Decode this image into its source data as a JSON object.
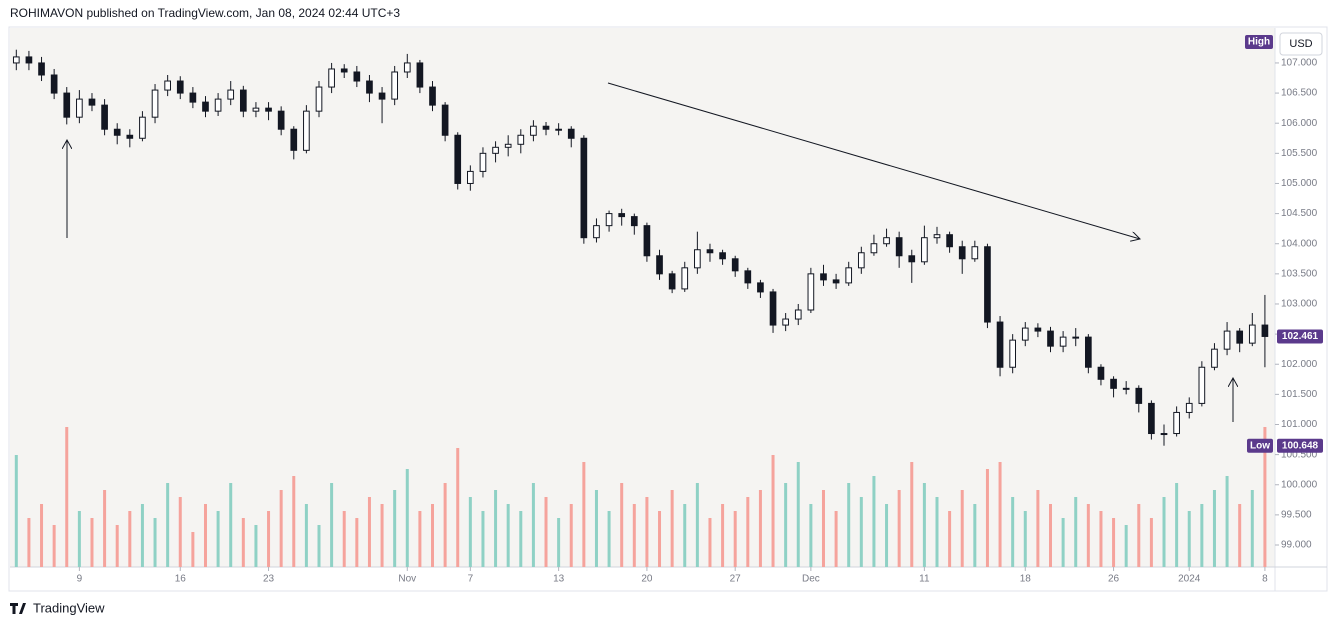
{
  "header": "ROHIMAVON published on TradingView.com, Jan 08, 2024 02:44 UTC+3",
  "footer": "TradingView",
  "currency_button": "USD",
  "high_badge": "High",
  "low_badge": "Low",
  "chart_data": {
    "type": "candlestick",
    "ylim": [
      98.635,
      107.58
    ],
    "yticks": [
      {
        "value": 99,
        "label": "99.000"
      },
      {
        "value": 99.5,
        "label": "99.500"
      },
      {
        "value": 100,
        "label": "100.000"
      },
      {
        "value": 100.5,
        "label": "100.500"
      },
      {
        "value": 101,
        "label": "101.000"
      },
      {
        "value": 101.5,
        "label": "101.500"
      },
      {
        "value": 102,
        "label": "102.000"
      },
      {
        "value": 102.5,
        "label": "102.500"
      },
      {
        "value": 103,
        "label": "103.000"
      },
      {
        "value": 103.5,
        "label": "103.500"
      },
      {
        "value": 104,
        "label": "104.000"
      },
      {
        "value": 104.5,
        "label": "104.500"
      },
      {
        "value": 105,
        "label": "105.000"
      },
      {
        "value": 105.5,
        "label": "105.500"
      },
      {
        "value": 106,
        "label": "106.000"
      },
      {
        "value": 106.5,
        "label": "106.500"
      },
      {
        "value": 107,
        "label": "107.000"
      }
    ],
    "xlim": [
      -0.5,
      99.8
    ],
    "xticks": [
      {
        "value": 5,
        "label": "9"
      },
      {
        "value": 13,
        "label": "16"
      },
      {
        "value": 20,
        "label": "23"
      },
      {
        "value": 31,
        "label": "Nov"
      },
      {
        "value": 36,
        "label": "7"
      },
      {
        "value": 43,
        "label": "13"
      },
      {
        "value": 50,
        "label": "20"
      },
      {
        "value": 57,
        "label": "27"
      },
      {
        "value": 63,
        "label": "Dec"
      },
      {
        "value": 72,
        "label": "11"
      },
      {
        "value": 80,
        "label": "18"
      },
      {
        "value": 87,
        "label": "26"
      },
      {
        "value": 93,
        "label": "2024"
      },
      {
        "value": 99,
        "label": "8"
      }
    ],
    "grid": false,
    "candle_color": "#131722",
    "up_volume_color": "#8fd1c5",
    "down_volume_color": "#f5a39c",
    "open": [
      107.0,
      107.1,
      107.0,
      106.8,
      106.5,
      106.1,
      106.4,
      106.3,
      105.9,
      105.8,
      105.75,
      106.1,
      106.55,
      106.7,
      106.5,
      106.35,
      106.2,
      106.4,
      106.55,
      106.2,
      106.25,
      106.2,
      105.9,
      105.55,
      106.2,
      106.6,
      106.9,
      106.85,
      106.7,
      106.5,
      106.4,
      106.85,
      107.0,
      106.6,
      106.3,
      105.8,
      105.0,
      105.2,
      105.5,
      105.6,
      105.65,
      105.8,
      105.95,
      105.9,
      105.9,
      105.75,
      104.1,
      104.3,
      104.5,
      104.45,
      104.3,
      103.8,
      103.5,
      103.25,
      103.6,
      103.9,
      103.85,
      103.75,
      103.55,
      103.35,
      103.2,
      102.65,
      102.75,
      102.9,
      103.5,
      103.4,
      103.35,
      103.6,
      103.85,
      104.0,
      104.1,
      103.8,
      103.7,
      104.1,
      104.15,
      103.95,
      103.75,
      103.95,
      102.7,
      101.95,
      102.4,
      102.6,
      102.55,
      102.3,
      102.45,
      102.45,
      101.95,
      101.75,
      101.6,
      101.6,
      101.35,
      100.85,
      100.85,
      101.2,
      101.35,
      101.95,
      102.25,
      102.55,
      102.35,
      102.65
    ],
    "high": [
      107.22,
      107.2,
      107.1,
      106.9,
      106.6,
      106.55,
      106.5,
      106.4,
      106.0,
      105.9,
      106.2,
      106.65,
      106.8,
      106.78,
      106.6,
      106.45,
      106.5,
      106.7,
      106.62,
      106.35,
      106.35,
      106.28,
      105.95,
      106.3,
      106.7,
      107.0,
      106.98,
      106.95,
      106.8,
      106.6,
      106.95,
      107.15,
      107.05,
      106.7,
      106.35,
      105.85,
      105.3,
      105.6,
      105.7,
      105.8,
      105.9,
      106.05,
      106.02,
      106.0,
      105.95,
      105.8,
      104.42,
      104.55,
      104.58,
      104.5,
      104.35,
      103.9,
      103.55,
      103.7,
      104.2,
      104.0,
      103.9,
      103.8,
      103.6,
      103.4,
      103.25,
      102.85,
      103.0,
      103.6,
      103.65,
      103.5,
      103.7,
      103.95,
      104.15,
      104.25,
      104.2,
      103.9,
      104.3,
      104.28,
      104.2,
      104.05,
      104.05,
      104.0,
      102.8,
      102.5,
      102.7,
      102.68,
      102.62,
      102.55,
      102.6,
      102.5,
      102.0,
      101.8,
      101.72,
      101.65,
      101.4,
      101.0,
      101.3,
      101.45,
      102.05,
      102.35,
      102.7,
      102.6,
      102.85,
      103.15
    ],
    "low": [
      106.88,
      106.88,
      106.7,
      106.4,
      105.98,
      106.0,
      106.2,
      105.8,
      105.65,
      105.6,
      105.7,
      106.0,
      106.45,
      106.4,
      106.25,
      106.1,
      106.12,
      106.3,
      106.1,
      106.1,
      106.05,
      105.8,
      105.4,
      105.5,
      106.1,
      106.5,
      106.75,
      106.6,
      106.35,
      106.0,
      106.3,
      106.75,
      106.5,
      106.2,
      105.7,
      104.9,
      104.88,
      105.1,
      105.35,
      105.45,
      105.5,
      105.7,
      105.8,
      105.8,
      105.6,
      104.0,
      104.02,
      104.2,
      104.3,
      104.15,
      103.7,
      103.4,
      103.18,
      103.2,
      103.5,
      103.7,
      103.65,
      103.45,
      103.25,
      103.1,
      102.52,
      102.55,
      102.65,
      102.85,
      103.3,
      103.25,
      103.3,
      103.5,
      103.8,
      103.95,
      103.6,
      103.35,
      103.65,
      104.0,
      103.85,
      103.5,
      103.7,
      102.6,
      101.8,
      101.85,
      102.3,
      102.45,
      102.2,
      102.2,
      102.3,
      101.85,
      101.65,
      101.45,
      101.5,
      101.2,
      100.75,
      100.648,
      100.8,
      101.1,
      101.3,
      101.9,
      102.15,
      102.2,
      102.3,
      101.95
    ],
    "close": [
      107.1,
      107.0,
      106.8,
      106.5,
      106.1,
      106.4,
      106.3,
      105.9,
      105.8,
      105.75,
      106.1,
      106.55,
      106.7,
      106.5,
      106.35,
      106.2,
      106.4,
      106.55,
      106.2,
      106.25,
      106.2,
      105.9,
      105.55,
      106.2,
      106.6,
      106.9,
      106.85,
      106.7,
      106.5,
      106.4,
      106.85,
      107.0,
      106.6,
      106.3,
      105.8,
      105.0,
      105.2,
      105.5,
      105.6,
      105.65,
      105.8,
      105.95,
      105.9,
      105.9,
      105.75,
      104.1,
      104.3,
      104.5,
      104.45,
      104.3,
      103.8,
      103.5,
      103.25,
      103.6,
      103.9,
      103.85,
      103.75,
      103.55,
      103.35,
      103.2,
      102.65,
      102.75,
      102.9,
      103.5,
      103.4,
      103.35,
      103.6,
      103.85,
      104.0,
      104.1,
      103.8,
      103.7,
      104.1,
      104.15,
      103.95,
      103.75,
      103.95,
      102.7,
      101.95,
      102.4,
      102.6,
      102.55,
      102.3,
      102.45,
      102.45,
      101.95,
      101.75,
      101.6,
      101.6,
      101.35,
      100.85,
      100.85,
      101.2,
      101.35,
      101.95,
      102.25,
      102.55,
      102.35,
      102.65,
      102.461
    ],
    "volume": [
      80,
      35,
      45,
      30,
      100,
      40,
      35,
      55,
      30,
      40,
      45,
      35,
      60,
      50,
      25,
      45,
      40,
      60,
      35,
      30,
      40,
      55,
      65,
      45,
      30,
      60,
      40,
      35,
      50,
      45,
      55,
      70,
      40,
      45,
      60,
      85,
      50,
      40,
      55,
      45,
      40,
      60,
      50,
      35,
      45,
      75,
      55,
      40,
      60,
      45,
      50,
      40,
      55,
      45,
      60,
      35,
      45,
      40,
      50,
      55,
      80,
      60,
      75,
      45,
      55,
      40,
      60,
      50,
      65,
      45,
      55,
      75,
      60,
      50,
      40,
      55,
      45,
      70,
      75,
      50,
      40,
      55,
      45,
      35,
      50,
      45,
      40,
      35,
      30,
      45,
      35,
      50,
      60,
      40,
      45,
      55,
      65,
      45,
      55,
      100
    ]
  }
}
